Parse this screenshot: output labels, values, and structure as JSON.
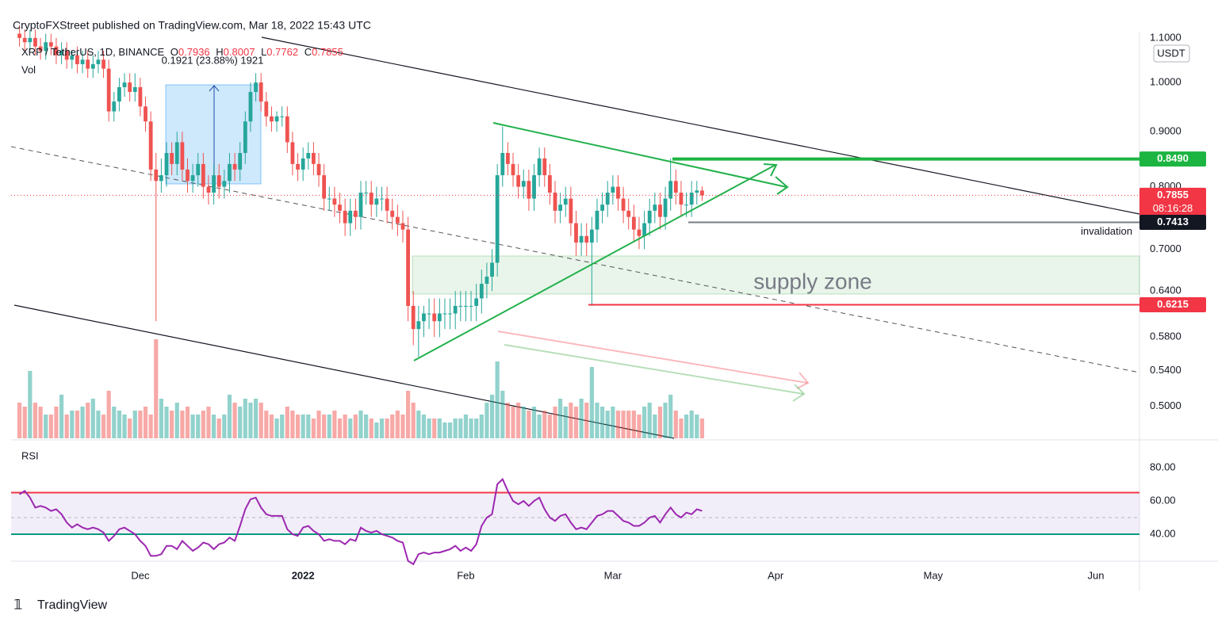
{
  "header": "CryptoFXStreet published on TradingView.com, Mar 18, 2022 15:43 UTC",
  "footer": "TradingView",
  "chart_data": [
    {
      "type": "candlestick",
      "symbol": "XRP / TetherUS, 1D, BINANCE",
      "ohlc_labels": [
        "O",
        "H",
        "L",
        "C"
      ],
      "legend_values": [
        0.7936,
        0.8007,
        0.7762,
        0.7855
      ],
      "measure_label": "0.1921 (23.88%) 1921",
      "volume_label": "Vol",
      "currency": "USDT",
      "zone_label": "supply zone",
      "up_color": "#26a69a",
      "down_color": "#ef5350",
      "log_scale": true,
      "grid": false,
      "xlim": [
        -1.6,
        213.3
      ],
      "xticks": [
        {
          "value": 23,
          "label": "Dec"
        },
        {
          "value": 54,
          "label": "2022"
        },
        {
          "value": 85,
          "label": "Feb"
        },
        {
          "value": 113,
          "label": "Mar"
        },
        {
          "value": 144,
          "label": "Apr"
        },
        {
          "value": 174,
          "label": "May"
        },
        {
          "value": 205,
          "label": "Jun"
        }
      ],
      "ylim": [
        0.467,
        1.111
      ],
      "yticks": [
        {
          "value": 1.1,
          "label": "1.1000"
        },
        {
          "value": 1.0,
          "label": "1.0000"
        },
        {
          "value": 0.9,
          "label": "0.9000"
        },
        {
          "value": 0.8,
          "label": "0.8000"
        },
        {
          "value": 0.7,
          "label": "0.7000"
        },
        {
          "value": 0.64,
          "label": "0.6400"
        },
        {
          "value": 0.58,
          "label": "0.5800"
        },
        {
          "value": 0.54,
          "label": "0.5400"
        },
        {
          "value": 0.5,
          "label": "0.5000"
        }
      ],
      "levels": [
        {
          "value": 0.849,
          "label": "0.8490",
          "color": "#1db542"
        },
        {
          "value": 0.7855,
          "label": "0.7855",
          "color": "#f23645",
          "countdown": "08:16:28"
        },
        {
          "value": 0.7413,
          "label": "0.7413",
          "color": "#131722",
          "note": "invalidation"
        },
        {
          "value": 0.6215,
          "label": "0.6215",
          "color": "#f23645"
        }
      ],
      "open": [
        1.11,
        1.1,
        1.09,
        1.1,
        1.08,
        1.07,
        1.09,
        1.08,
        1.06,
        1.07,
        1.05,
        1.06,
        1.04,
        1.05,
        1.03,
        1.04,
        1.05,
        1.03,
        0.94,
        0.96,
        0.99,
        1.0,
        0.98,
        0.99,
        0.95,
        0.92,
        0.83,
        0.81,
        0.82,
        0.86,
        0.84,
        0.88,
        0.83,
        0.81,
        0.82,
        0.84,
        0.8,
        0.79,
        0.82,
        0.8,
        0.81,
        0.84,
        0.83,
        0.86,
        0.92,
        0.98,
        1.0,
        0.96,
        0.93,
        0.92,
        0.93,
        0.93,
        0.88,
        0.84,
        0.83,
        0.85,
        0.86,
        0.84,
        0.82,
        0.78,
        0.78,
        0.77,
        0.76,
        0.74,
        0.76,
        0.75,
        0.79,
        0.79,
        0.77,
        0.78,
        0.78,
        0.76,
        0.75,
        0.74,
        0.73,
        0.62,
        0.59,
        0.6,
        0.61,
        0.61,
        0.6,
        0.61,
        0.61,
        0.61,
        0.62,
        0.62,
        0.62,
        0.62,
        0.63,
        0.65,
        0.66,
        0.68,
        0.82,
        0.86,
        0.84,
        0.82,
        0.8,
        0.81,
        0.78,
        0.82,
        0.85,
        0.82,
        0.79,
        0.76,
        0.77,
        0.78,
        0.74,
        0.71,
        0.72,
        0.71,
        0.73,
        0.76,
        0.77,
        0.79,
        0.8,
        0.78,
        0.76,
        0.75,
        0.73,
        0.72,
        0.74,
        0.76,
        0.77,
        0.75,
        0.78,
        0.81,
        0.79,
        0.77,
        0.77,
        0.79,
        0.7936
      ],
      "high": [
        1.13,
        1.12,
        1.12,
        1.12,
        1.1,
        1.11,
        1.11,
        1.1,
        1.09,
        1.09,
        1.07,
        1.08,
        1.07,
        1.07,
        1.06,
        1.07,
        1.07,
        1.05,
        0.98,
        1.01,
        1.02,
        1.02,
        1.02,
        1.01,
        0.97,
        0.94,
        0.86,
        0.85,
        0.88,
        0.88,
        0.9,
        0.9,
        0.85,
        0.84,
        0.86,
        0.86,
        0.82,
        0.84,
        0.84,
        0.83,
        0.86,
        0.86,
        0.88,
        0.94,
        1.0,
        1.02,
        1.02,
        0.98,
        0.95,
        0.94,
        0.95,
        0.95,
        0.9,
        0.86,
        0.87,
        0.88,
        0.88,
        0.86,
        0.84,
        0.8,
        0.8,
        0.79,
        0.78,
        0.78,
        0.78,
        0.81,
        0.81,
        0.81,
        0.8,
        0.8,
        0.8,
        0.78,
        0.77,
        0.76,
        0.75,
        0.64,
        0.62,
        0.62,
        0.63,
        0.63,
        0.63,
        0.63,
        0.63,
        0.64,
        0.64,
        0.64,
        0.64,
        0.65,
        0.67,
        0.68,
        0.7,
        0.84,
        0.91,
        0.88,
        0.86,
        0.84,
        0.83,
        0.83,
        0.84,
        0.87,
        0.87,
        0.84,
        0.81,
        0.79,
        0.8,
        0.8,
        0.76,
        0.74,
        0.74,
        0.75,
        0.78,
        0.79,
        0.81,
        0.82,
        0.82,
        0.8,
        0.78,
        0.77,
        0.75,
        0.76,
        0.78,
        0.79,
        0.79,
        0.8,
        0.85,
        0.83,
        0.81,
        0.79,
        0.81,
        0.81,
        0.8007
      ],
      "low": [
        1.08,
        1.07,
        1.07,
        1.06,
        1.05,
        1.05,
        1.06,
        1.04,
        1.04,
        1.03,
        1.03,
        1.02,
        1.02,
        1.01,
        1.01,
        1.02,
        1.01,
        0.92,
        0.92,
        0.94,
        0.97,
        0.96,
        0.96,
        0.93,
        0.9,
        0.81,
        0.6,
        0.79,
        0.8,
        0.82,
        0.82,
        0.81,
        0.79,
        0.79,
        0.8,
        0.78,
        0.77,
        0.77,
        0.78,
        0.78,
        0.79,
        0.81,
        0.81,
        0.84,
        0.9,
        0.96,
        0.94,
        0.91,
        0.9,
        0.9,
        0.91,
        0.86,
        0.82,
        0.81,
        0.81,
        0.83,
        0.82,
        0.8,
        0.76,
        0.76,
        0.75,
        0.74,
        0.72,
        0.72,
        0.73,
        0.73,
        0.77,
        0.75,
        0.75,
        0.76,
        0.74,
        0.73,
        0.72,
        0.71,
        0.6,
        0.57,
        0.556,
        0.58,
        0.59,
        0.58,
        0.58,
        0.59,
        0.59,
        0.59,
        0.6,
        0.6,
        0.6,
        0.6,
        0.61,
        0.63,
        0.64,
        0.66,
        0.8,
        0.82,
        0.8,
        0.78,
        0.78,
        0.76,
        0.76,
        0.8,
        0.8,
        0.77,
        0.74,
        0.74,
        0.75,
        0.72,
        0.69,
        0.69,
        0.69,
        0.62,
        0.71,
        0.74,
        0.75,
        0.77,
        0.76,
        0.74,
        0.73,
        0.71,
        0.7,
        0.7,
        0.72,
        0.74,
        0.73,
        0.73,
        0.76,
        0.77,
        0.75,
        0.75,
        0.75,
        0.77,
        0.7762
      ],
      "close": [
        1.1,
        1.09,
        1.1,
        1.08,
        1.07,
        1.09,
        1.08,
        1.06,
        1.07,
        1.05,
        1.06,
        1.04,
        1.05,
        1.03,
        1.04,
        1.05,
        1.03,
        0.94,
        0.96,
        0.99,
        1.0,
        0.98,
        0.99,
        0.95,
        0.92,
        0.83,
        0.81,
        0.82,
        0.86,
        0.84,
        0.88,
        0.83,
        0.81,
        0.82,
        0.84,
        0.8,
        0.79,
        0.82,
        0.8,
        0.81,
        0.84,
        0.83,
        0.86,
        0.92,
        0.98,
        1.0,
        0.96,
        0.93,
        0.92,
        0.93,
        0.93,
        0.88,
        0.84,
        0.83,
        0.85,
        0.86,
        0.84,
        0.82,
        0.78,
        0.78,
        0.77,
        0.76,
        0.74,
        0.76,
        0.75,
        0.79,
        0.79,
        0.77,
        0.78,
        0.78,
        0.76,
        0.75,
        0.74,
        0.73,
        0.62,
        0.59,
        0.6,
        0.61,
        0.61,
        0.6,
        0.61,
        0.61,
        0.61,
        0.62,
        0.62,
        0.62,
        0.62,
        0.63,
        0.65,
        0.66,
        0.68,
        0.82,
        0.86,
        0.84,
        0.82,
        0.8,
        0.81,
        0.78,
        0.82,
        0.85,
        0.82,
        0.79,
        0.76,
        0.77,
        0.78,
        0.74,
        0.71,
        0.72,
        0.71,
        0.73,
        0.76,
        0.77,
        0.79,
        0.8,
        0.78,
        0.76,
        0.75,
        0.73,
        0.72,
        0.74,
        0.76,
        0.77,
        0.75,
        0.78,
        0.81,
        0.79,
        0.77,
        0.77,
        0.79,
        0.7936,
        0.7855
      ],
      "volume": [
        45,
        40,
        85,
        45,
        40,
        30,
        30,
        40,
        55,
        30,
        35,
        35,
        40,
        45,
        50,
        35,
        30,
        60,
        40,
        35,
        30,
        25,
        35,
        35,
        40,
        30,
        125,
        50,
        40,
        35,
        45,
        35,
        40,
        30,
        30,
        35,
        40,
        30,
        25,
        30,
        55,
        45,
        40,
        50,
        45,
        50,
        45,
        35,
        30,
        25,
        30,
        40,
        35,
        30,
        30,
        30,
        25,
        35,
        30,
        30,
        35,
        25,
        30,
        25,
        30,
        35,
        30,
        25,
        20,
        25,
        25,
        30,
        35,
        30,
        60,
        45,
        35,
        30,
        25,
        25,
        25,
        20,
        20,
        25,
        25,
        30,
        25,
        25,
        30,
        45,
        55,
        97,
        60,
        45,
        40,
        45,
        40,
        35,
        40,
        30,
        35,
        30,
        40,
        50,
        40,
        45,
        40,
        50,
        45,
        90,
        45,
        40,
        35,
        40,
        35,
        35,
        35,
        35,
        30,
        40,
        45,
        30,
        40,
        45,
        55,
        35,
        25,
        30,
        35,
        30,
        25
      ]
    },
    {
      "type": "line",
      "title": "RSI",
      "color": "#9c27b0",
      "ylim": [
        23.8,
        93.3
      ],
      "yticks": [
        {
          "value": 80,
          "label": "80.00"
        },
        {
          "value": 60,
          "label": "60.00"
        },
        {
          "value": 40,
          "label": "40.00"
        }
      ],
      "bands": {
        "upper": 65,
        "middle": 50,
        "lower": 40
      },
      "values": [
        64,
        66,
        62,
        56,
        57,
        56,
        54,
        55,
        52,
        47,
        44,
        46,
        44,
        43,
        44,
        43,
        41,
        36,
        39,
        43,
        44,
        42,
        40,
        36,
        33,
        27,
        27,
        28,
        33,
        33,
        31,
        36,
        33,
        30,
        32,
        35,
        34,
        31,
        34,
        35,
        38,
        36,
        45,
        55,
        61,
        62,
        56,
        52,
        51,
        51,
        51,
        43,
        40,
        39,
        44,
        45,
        42,
        40,
        36,
        37,
        36,
        36,
        34,
        37,
        36,
        44,
        42,
        41,
        42,
        40,
        39,
        38,
        36,
        35,
        24,
        22,
        28,
        29,
        28,
        29,
        29,
        30,
        31,
        33,
        30,
        32,
        30,
        34,
        45,
        50,
        52,
        70,
        73,
        66,
        60,
        58,
        60,
        57,
        60,
        62,
        55,
        50,
        48,
        51,
        52,
        47,
        43,
        44,
        43,
        47,
        51,
        52,
        54,
        54,
        51,
        48,
        47,
        45,
        45,
        47,
        50,
        51,
        47,
        52,
        56,
        52,
        50,
        53,
        52,
        55,
        54
      ]
    }
  ]
}
